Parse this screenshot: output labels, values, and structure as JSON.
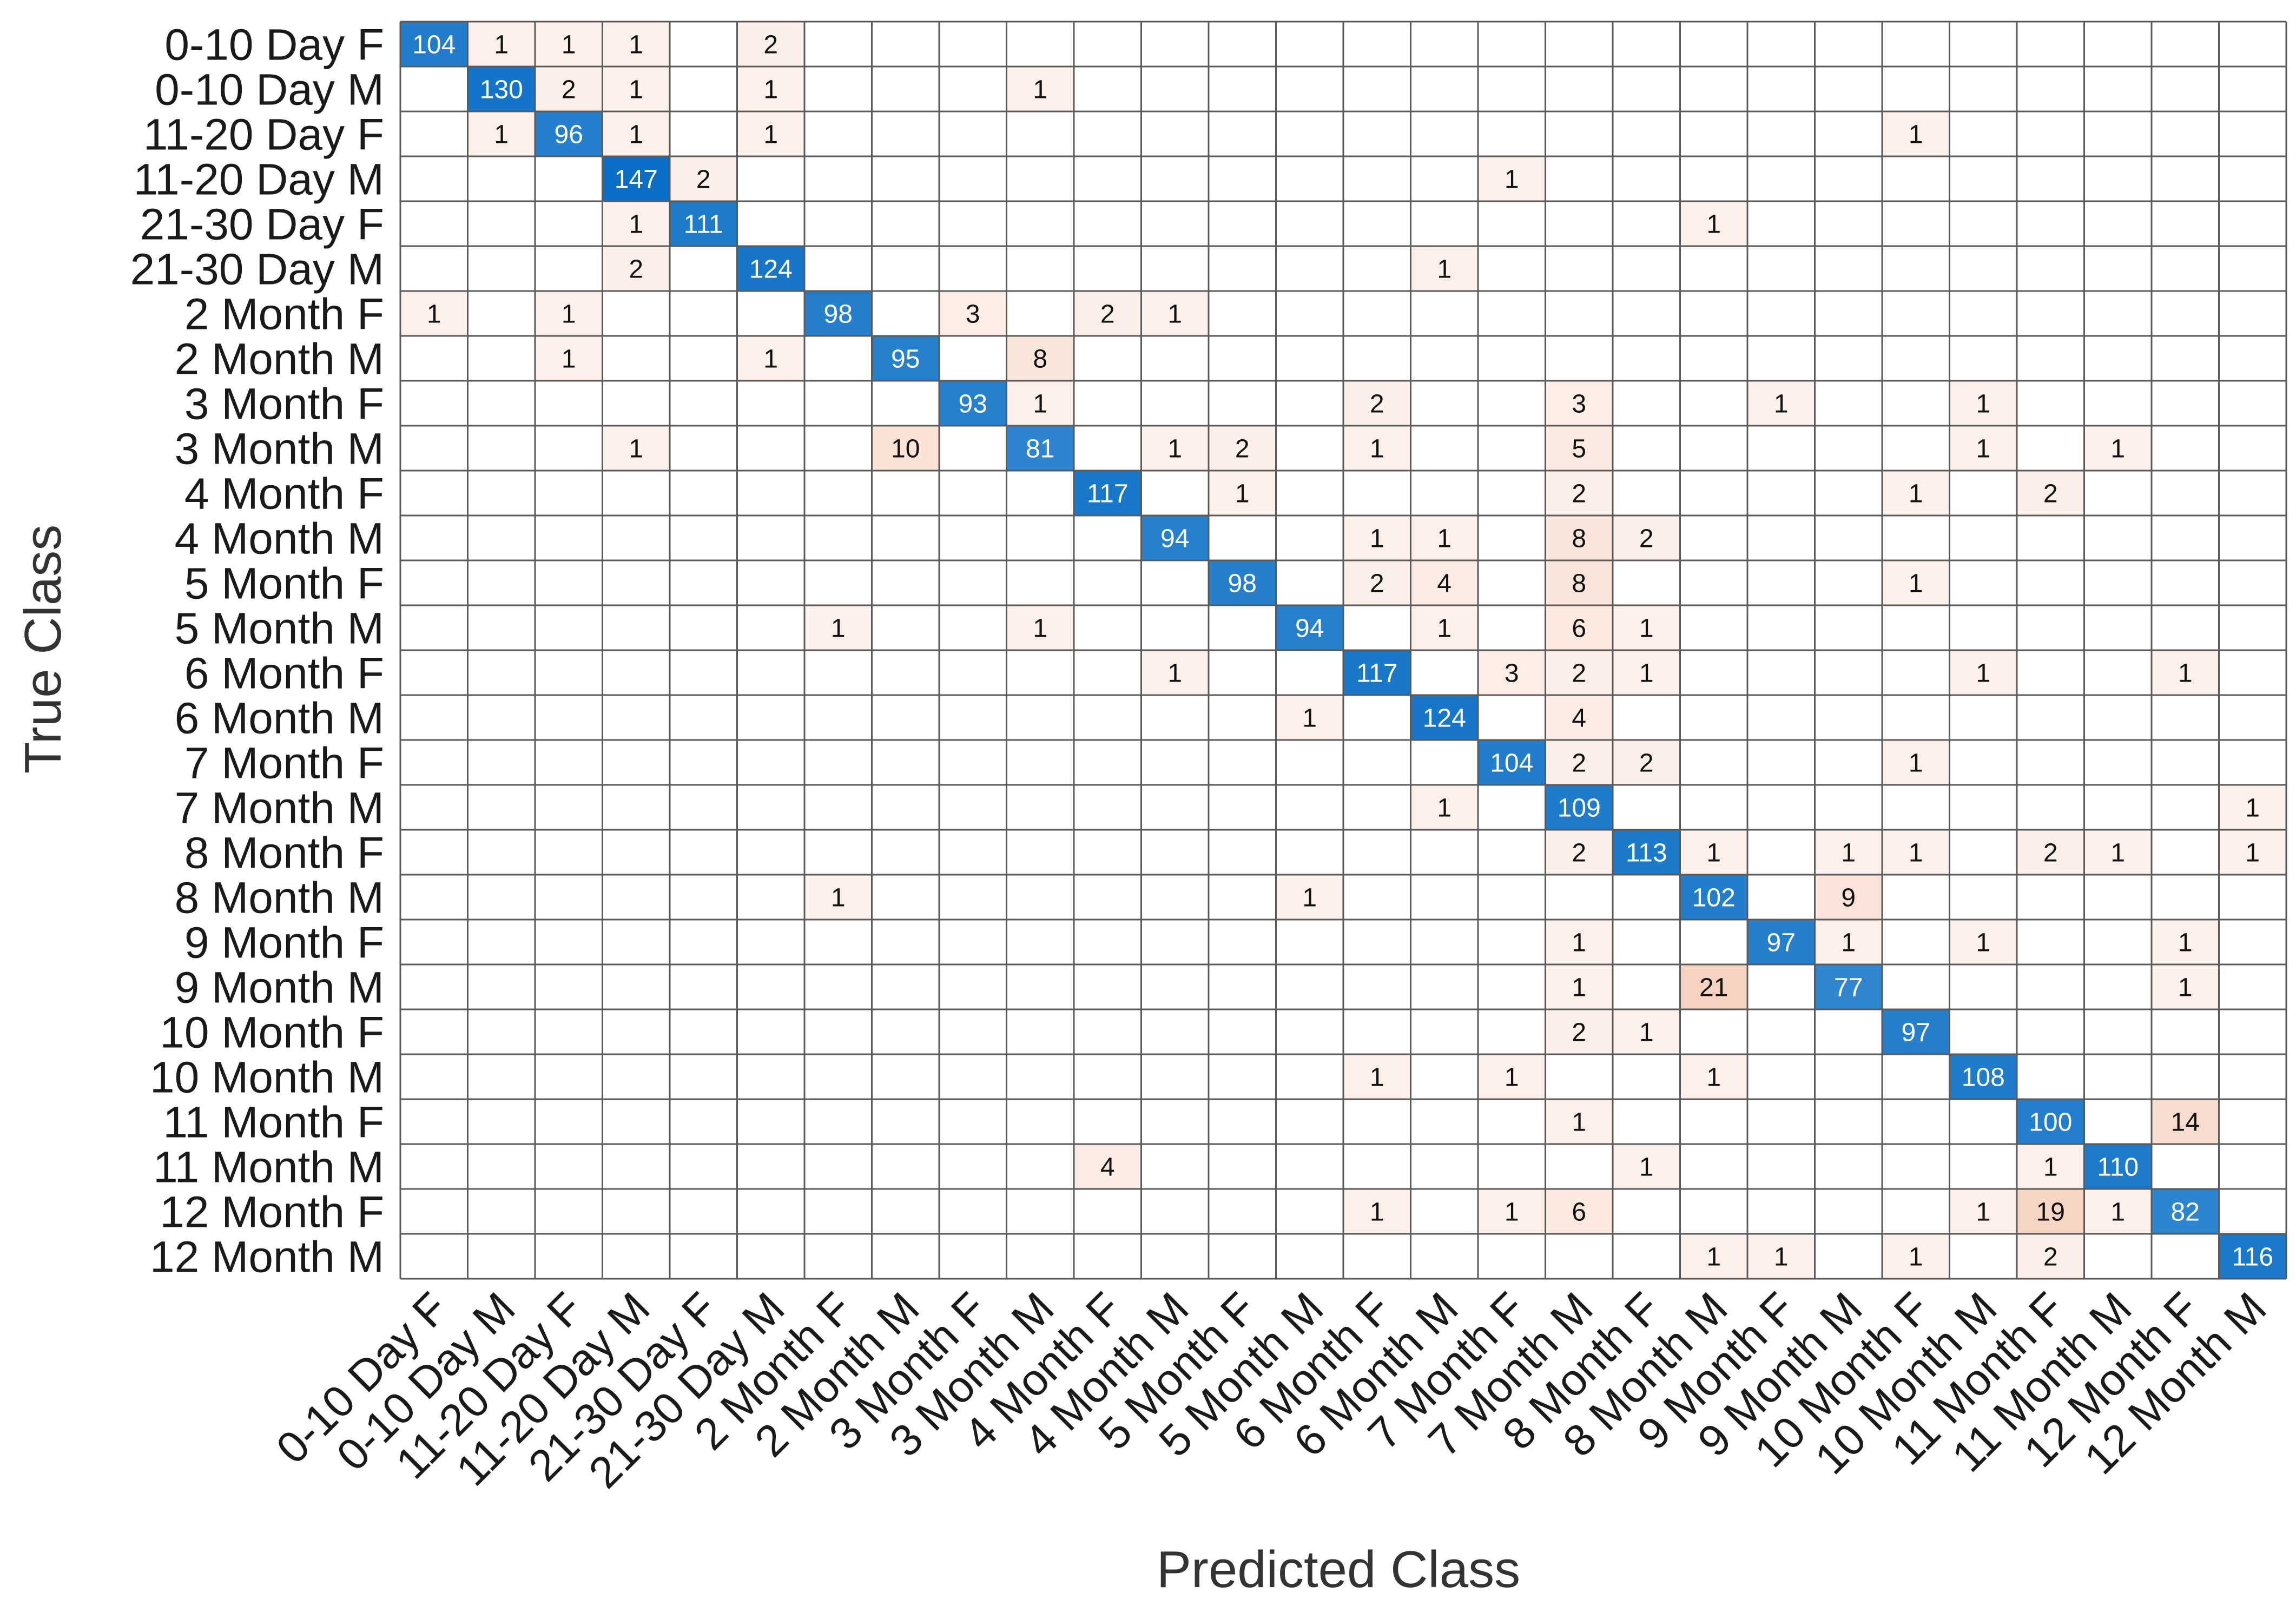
{
  "chart_data": {
    "type": "heatmap",
    "title": "",
    "xlabel": "Predicted Class",
    "ylabel": "True Class",
    "classes": [
      "0-10 Day F",
      "0-10 Day M",
      "11-20 Day F",
      "11-20 Day M",
      "21-30 Day F",
      "21-30 Day M",
      "2 Month F",
      "2 Month M",
      "3 Month F",
      "3 Month M",
      "4 Month F",
      "4 Month M",
      "5 Month F",
      "5 Month M",
      "6 Month F",
      "6 Month M",
      "7 Month F",
      "7 Month M",
      "8 Month F",
      "8 Month M",
      "9 Month F",
      "9 Month M",
      "10 Month F",
      "10 Month M",
      "11 Month F",
      "11 Month M",
      "12 Month F",
      "12 Month M"
    ],
    "matrix": [
      [
        104,
        1,
        1,
        1,
        0,
        2,
        0,
        0,
        0,
        0,
        0,
        0,
        0,
        0,
        0,
        0,
        0,
        0,
        0,
        0,
        0,
        0,
        0,
        0,
        0,
        0,
        0,
        0
      ],
      [
        0,
        130,
        2,
        1,
        0,
        1,
        0,
        0,
        0,
        1,
        0,
        0,
        0,
        0,
        0,
        0,
        0,
        0,
        0,
        0,
        0,
        0,
        0,
        0,
        0,
        0,
        0,
        0
      ],
      [
        0,
        1,
        96,
        1,
        0,
        1,
        0,
        0,
        0,
        0,
        0,
        0,
        0,
        0,
        0,
        0,
        0,
        0,
        0,
        0,
        0,
        0,
        1,
        0,
        0,
        0,
        0,
        0
      ],
      [
        0,
        0,
        0,
        147,
        2,
        0,
        0,
        0,
        0,
        0,
        0,
        0,
        0,
        0,
        0,
        0,
        1,
        0,
        0,
        0,
        0,
        0,
        0,
        0,
        0,
        0,
        0,
        0
      ],
      [
        0,
        0,
        0,
        1,
        111,
        0,
        0,
        0,
        0,
        0,
        0,
        0,
        0,
        0,
        0,
        0,
        0,
        0,
        0,
        1,
        0,
        0,
        0,
        0,
        0,
        0,
        0,
        0
      ],
      [
        0,
        0,
        0,
        2,
        0,
        124,
        0,
        0,
        0,
        0,
        0,
        0,
        0,
        0,
        0,
        1,
        0,
        0,
        0,
        0,
        0,
        0,
        0,
        0,
        0,
        0,
        0,
        0
      ],
      [
        1,
        0,
        1,
        0,
        0,
        0,
        98,
        0,
        3,
        0,
        2,
        1,
        0,
        0,
        0,
        0,
        0,
        0,
        0,
        0,
        0,
        0,
        0,
        0,
        0,
        0,
        0,
        0
      ],
      [
        0,
        0,
        1,
        0,
        0,
        1,
        0,
        95,
        0,
        8,
        0,
        0,
        0,
        0,
        0,
        0,
        0,
        0,
        0,
        0,
        0,
        0,
        0,
        0,
        0,
        0,
        0,
        0
      ],
      [
        0,
        0,
        0,
        0,
        0,
        0,
        0,
        0,
        93,
        1,
        0,
        0,
        0,
        0,
        2,
        0,
        0,
        3,
        0,
        0,
        1,
        0,
        0,
        1,
        0,
        0,
        0,
        0
      ],
      [
        0,
        0,
        0,
        1,
        0,
        0,
        0,
        10,
        0,
        81,
        0,
        1,
        2,
        0,
        1,
        0,
        0,
        5,
        0,
        0,
        0,
        0,
        0,
        1,
        0,
        1,
        0,
        0
      ],
      [
        0,
        0,
        0,
        0,
        0,
        0,
        0,
        0,
        0,
        0,
        117,
        0,
        1,
        0,
        0,
        0,
        0,
        2,
        0,
        0,
        0,
        0,
        1,
        0,
        2,
        0,
        0,
        0
      ],
      [
        0,
        0,
        0,
        0,
        0,
        0,
        0,
        0,
        0,
        0,
        0,
        94,
        0,
        0,
        1,
        1,
        0,
        8,
        2,
        0,
        0,
        0,
        0,
        0,
        0,
        0,
        0,
        0
      ],
      [
        0,
        0,
        0,
        0,
        0,
        0,
        0,
        0,
        0,
        0,
        0,
        0,
        98,
        0,
        2,
        4,
        0,
        8,
        0,
        0,
        0,
        0,
        1,
        0,
        0,
        0,
        0,
        0
      ],
      [
        0,
        0,
        0,
        0,
        0,
        0,
        1,
        0,
        0,
        1,
        0,
        0,
        0,
        94,
        0,
        1,
        0,
        6,
        1,
        0,
        0,
        0,
        0,
        0,
        0,
        0,
        0,
        0
      ],
      [
        0,
        0,
        0,
        0,
        0,
        0,
        0,
        0,
        0,
        0,
        0,
        1,
        0,
        0,
        117,
        0,
        3,
        2,
        1,
        0,
        0,
        0,
        0,
        1,
        0,
        0,
        1,
        0
      ],
      [
        0,
        0,
        0,
        0,
        0,
        0,
        0,
        0,
        0,
        0,
        0,
        0,
        0,
        1,
        0,
        124,
        0,
        4,
        0,
        0,
        0,
        0,
        0,
        0,
        0,
        0,
        0,
        0
      ],
      [
        0,
        0,
        0,
        0,
        0,
        0,
        0,
        0,
        0,
        0,
        0,
        0,
        0,
        0,
        0,
        0,
        104,
        2,
        2,
        0,
        0,
        0,
        1,
        0,
        0,
        0,
        0,
        0
      ],
      [
        0,
        0,
        0,
        0,
        0,
        0,
        0,
        0,
        0,
        0,
        0,
        0,
        0,
        0,
        0,
        1,
        0,
        109,
        0,
        0,
        0,
        0,
        0,
        0,
        0,
        0,
        0,
        1
      ],
      [
        0,
        0,
        0,
        0,
        0,
        0,
        0,
        0,
        0,
        0,
        0,
        0,
        0,
        0,
        0,
        0,
        0,
        2,
        113,
        1,
        0,
        1,
        1,
        0,
        2,
        1,
        0,
        1
      ],
      [
        0,
        0,
        0,
        0,
        0,
        0,
        1,
        0,
        0,
        0,
        0,
        0,
        0,
        1,
        0,
        0,
        0,
        0,
        0,
        102,
        0,
        9,
        0,
        0,
        0,
        0,
        0,
        0
      ],
      [
        0,
        0,
        0,
        0,
        0,
        0,
        0,
        0,
        0,
        0,
        0,
        0,
        0,
        0,
        0,
        0,
        0,
        1,
        0,
        0,
        97,
        1,
        0,
        1,
        0,
        0,
        1,
        0
      ],
      [
        0,
        0,
        0,
        0,
        0,
        0,
        0,
        0,
        0,
        0,
        0,
        0,
        0,
        0,
        0,
        0,
        0,
        1,
        0,
        21,
        0,
        77,
        0,
        0,
        0,
        0,
        1,
        0
      ],
      [
        0,
        0,
        0,
        0,
        0,
        0,
        0,
        0,
        0,
        0,
        0,
        0,
        0,
        0,
        0,
        0,
        0,
        2,
        1,
        0,
        0,
        0,
        97,
        0,
        0,
        0,
        0,
        0
      ],
      [
        0,
        0,
        0,
        0,
        0,
        0,
        0,
        0,
        0,
        0,
        0,
        0,
        0,
        0,
        1,
        0,
        1,
        0,
        0,
        1,
        0,
        0,
        0,
        108,
        0,
        0,
        0,
        0
      ],
      [
        0,
        0,
        0,
        0,
        0,
        0,
        0,
        0,
        0,
        0,
        0,
        0,
        0,
        0,
        0,
        0,
        0,
        1,
        0,
        0,
        0,
        0,
        0,
        0,
        100,
        0,
        14,
        0
      ],
      [
        0,
        0,
        0,
        0,
        0,
        0,
        0,
        0,
        0,
        0,
        4,
        0,
        0,
        0,
        0,
        0,
        0,
        0,
        1,
        0,
        0,
        0,
        0,
        0,
        1,
        110,
        0,
        0
      ],
      [
        0,
        0,
        0,
        0,
        0,
        0,
        0,
        0,
        0,
        0,
        0,
        0,
        0,
        0,
        1,
        0,
        1,
        6,
        0,
        0,
        0,
        0,
        0,
        1,
        19,
        1,
        82,
        0
      ],
      [
        0,
        0,
        0,
        0,
        0,
        0,
        0,
        0,
        0,
        0,
        0,
        0,
        0,
        0,
        0,
        0,
        0,
        0,
        0,
        1,
        1,
        0,
        1,
        0,
        2,
        0,
        0,
        116
      ]
    ],
    "colors": {
      "diagonal_low": "#5aa0dc",
      "diagonal_high": "#0a6ec6",
      "offdiag_low": "#fdf1ec",
      "offdiag_high": "#f6d2c0",
      "grid": "#5a5a5a",
      "text_dark": "#111111",
      "text_light": "#ffffff"
    }
  }
}
